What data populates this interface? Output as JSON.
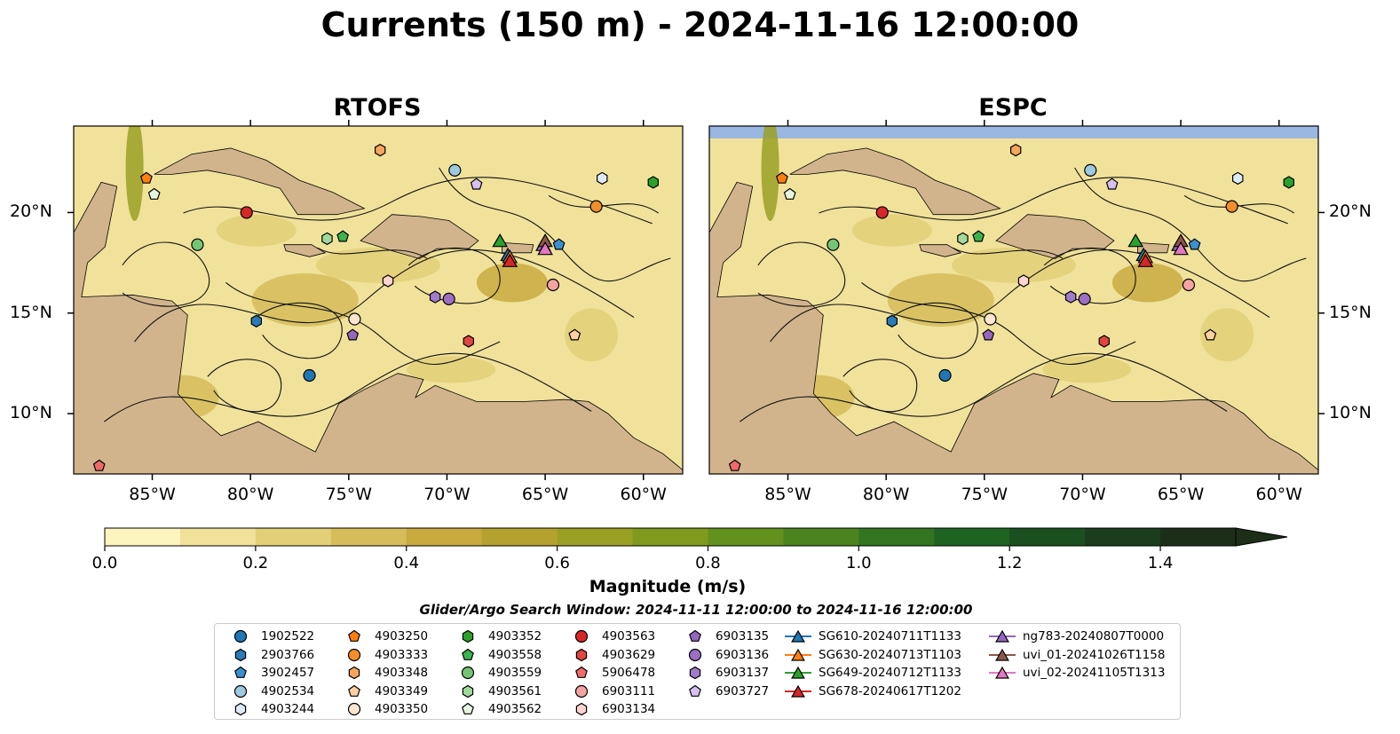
{
  "title": "Currents (150 m) - 2024-11-16 12:00:00",
  "panels": [
    {
      "title": "RTOFS"
    },
    {
      "title": "ESPC"
    }
  ],
  "colors": {
    "land": "#d2b48c",
    "water_unsampled": "#99b7e0",
    "colormap": [
      "#fdf5c0",
      "#f0e29a",
      "#e3cf78",
      "#d6bc5a",
      "#c9aa41",
      "#b4a12f",
      "#9aa024",
      "#7f9a1e",
      "#63911e",
      "#4b841f",
      "#337421",
      "#1f6322",
      "#1b4f20",
      "#1c3d1d",
      "#1d2e18"
    ]
  },
  "colorbar": {
    "label": "Magnitude (m/s)",
    "ticks": [
      "0.0",
      "0.2",
      "0.4",
      "0.6",
      "0.8",
      "1.0",
      "1.2",
      "1.4"
    ],
    "range": [
      0,
      1.5
    ],
    "extend": "max"
  },
  "search_window": "Glider/Argo Search Window: 2024-11-11 12:00:00 to 2024-11-16 12:00:00",
  "chart_data": {
    "type": "map",
    "xticks": [
      "85°W",
      "80°W",
      "75°W",
      "70°W",
      "65°W",
      "60°W"
    ],
    "yticks": [
      "20°N",
      "15°N",
      "10°N"
    ],
    "xlim": [
      -89,
      -58
    ],
    "ylim": [
      7,
      24.3
    ],
    "platforms": [
      {
        "name": "1902522",
        "marker": "circle",
        "color": "#1f77b4",
        "lon": -77.0,
        "lat": 11.9
      },
      {
        "name": "2903766",
        "marker": "hexagon",
        "color": "#2a7ab8",
        "lon": -79.7,
        "lat": 14.6
      },
      {
        "name": "3902457",
        "marker": "pentagon",
        "color": "#3a8fd0",
        "lon": -64.3,
        "lat": 18.4
      },
      {
        "name": "4902534",
        "marker": "circle",
        "color": "#9ecae1",
        "lon": -69.6,
        "lat": 22.1
      },
      {
        "name": "4903244",
        "marker": "hexagon",
        "color": "#deebf7",
        "lon": -62.1,
        "lat": 21.7
      },
      {
        "name": "4903250",
        "marker": "pentagon",
        "color": "#ff7f0e",
        "lon": -85.3,
        "lat": 21.7
      },
      {
        "name": "4903333",
        "marker": "circle",
        "color": "#f28e2b",
        "lon": -62.4,
        "lat": 20.3
      },
      {
        "name": "4903348",
        "marker": "hexagon",
        "color": "#f5a55c",
        "lon": -73.4,
        "lat": 23.1
      },
      {
        "name": "4903349",
        "marker": "pentagon",
        "color": "#fdd0a2",
        "lon": -63.5,
        "lat": 13.9
      },
      {
        "name": "4903350",
        "marker": "circle",
        "color": "#fee6ce",
        "lon": -74.7,
        "lat": 14.7
      },
      {
        "name": "4903352",
        "marker": "hexagon",
        "color": "#2ca02c",
        "lon": -59.5,
        "lat": 21.5
      },
      {
        "name": "4903558",
        "marker": "pentagon",
        "color": "#3cb44b",
        "lon": -75.3,
        "lat": 18.8
      },
      {
        "name": "4903559",
        "marker": "circle",
        "color": "#74c476",
        "lon": -82.7,
        "lat": 18.4
      },
      {
        "name": "4903561",
        "marker": "hexagon",
        "color": "#a1d99b",
        "lon": -76.1,
        "lat": 18.7
      },
      {
        "name": "4903562",
        "marker": "pentagon",
        "color": "#e5f5e0",
        "lon": -84.9,
        "lat": 20.9
      },
      {
        "name": "4903563",
        "marker": "circle",
        "color": "#d62728",
        "lon": -80.2,
        "lat": 20.0
      },
      {
        "name": "4903629",
        "marker": "hexagon",
        "color": "#e0453f",
        "lon": -68.9,
        "lat": 13.6
      },
      {
        "name": "5906478",
        "marker": "pentagon",
        "color": "#ef6a6a",
        "lon": -87.7,
        "lat": 7.4
      },
      {
        "name": "6903111",
        "marker": "circle",
        "color": "#f4a3a3",
        "lon": -64.6,
        "lat": 16.4
      },
      {
        "name": "6903134",
        "marker": "hexagon",
        "color": "#fdd5d0",
        "lon": -73.0,
        "lat": 16.6
      },
      {
        "name": "6903135",
        "marker": "pentagon",
        "color": "#9467bd",
        "lon": -74.8,
        "lat": 13.9
      },
      {
        "name": "6903136",
        "marker": "circle",
        "color": "#9a6fc4",
        "lon": -69.9,
        "lat": 15.7
      },
      {
        "name": "6903137",
        "marker": "hexagon",
        "color": "#a17bcc",
        "lon": -70.6,
        "lat": 15.8
      },
      {
        "name": "6903727",
        "marker": "pentagon",
        "color": "#d7bff0",
        "lon": -68.5,
        "lat": 21.4
      }
    ],
    "gliders": [
      {
        "name": "SG610-20240711T1133",
        "color": "#1f77b4",
        "lon": -66.9,
        "lat": 17.9
      },
      {
        "name": "SG630-20240713T1103",
        "color": "#ff7f0e",
        "lon": -66.8,
        "lat": 17.8
      },
      {
        "name": "SG649-20240712T1133",
        "color": "#2ca02c",
        "lon": -67.3,
        "lat": 18.6
      },
      {
        "name": "SG678-20240617T1202",
        "color": "#d62728",
        "lon": -66.8,
        "lat": 17.6
      },
      {
        "name": "ng783-20240807T0000",
        "color": "#9467bd",
        "lon": -65.1,
        "lat": 18.4
      },
      {
        "name": "uvi_01-20241026T1158",
        "color": "#8c564b",
        "lon": -65.0,
        "lat": 18.6
      },
      {
        "name": "uvi_02-20241105T1313",
        "color": "#e377c2",
        "lon": -65.0,
        "lat": 18.2
      }
    ]
  }
}
